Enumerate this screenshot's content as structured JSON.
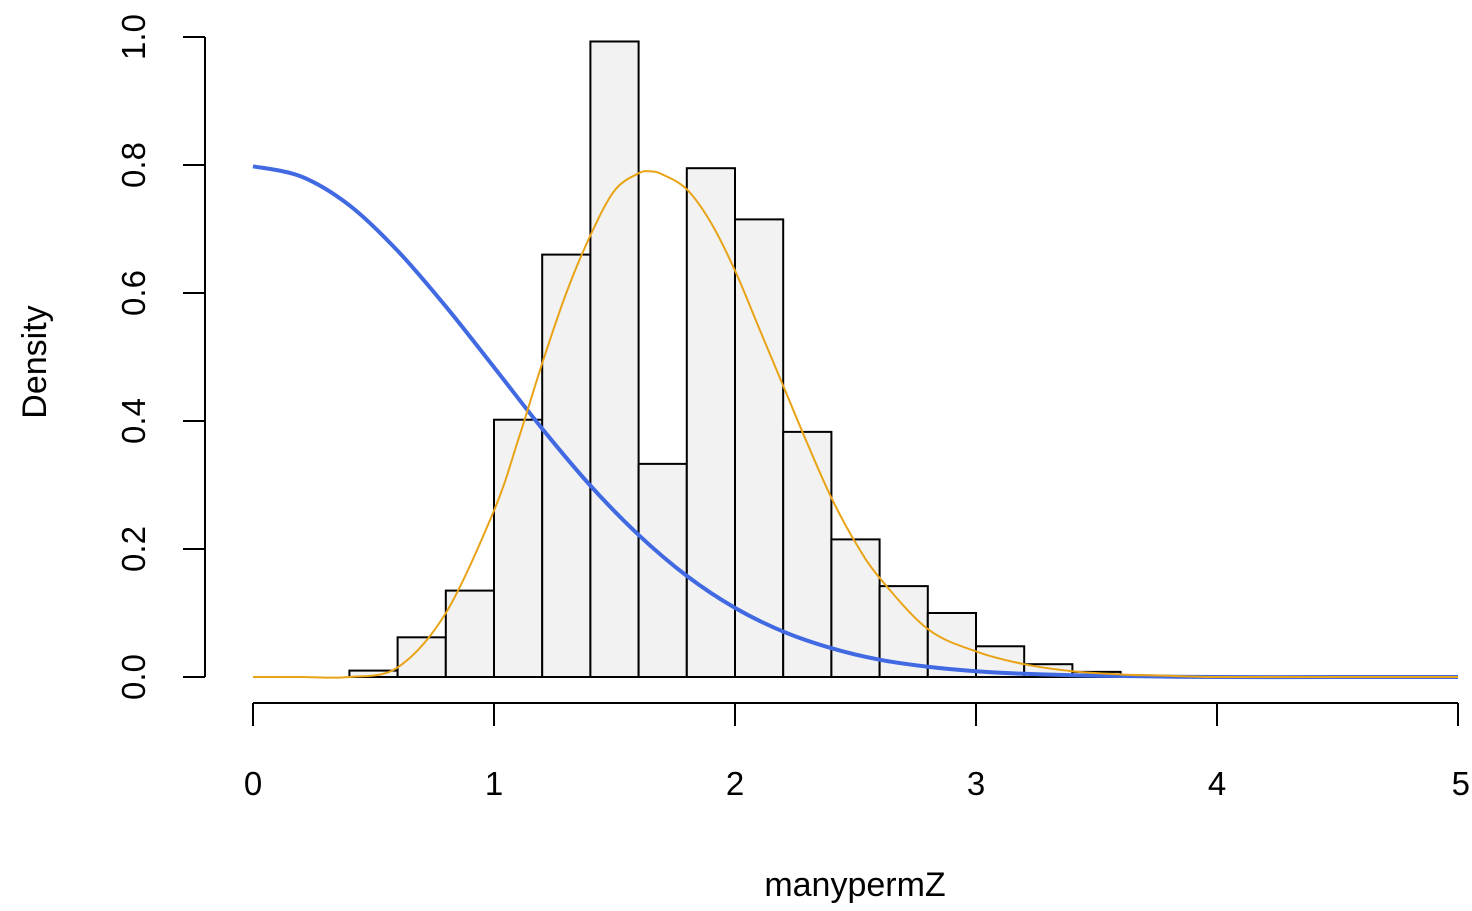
{
  "chart_data": {
    "type": "bar",
    "subtype": "histogram-with-density-curves",
    "title": "",
    "xlabel": "manypermZ",
    "ylabel": "Density",
    "xlim": [
      0,
      5
    ],
    "ylim": [
      0,
      1.0
    ],
    "x_ticks": [
      "0",
      "1",
      "2",
      "3",
      "4",
      "5"
    ],
    "y_ticks": [
      "0.0",
      "0.2",
      "0.4",
      "0.6",
      "0.8",
      "1.0"
    ],
    "bin_width": 0.2,
    "bins": [
      {
        "start": 0.4,
        "end": 0.6,
        "density": 0.01
      },
      {
        "start": 0.6,
        "end": 0.8,
        "density": 0.062
      },
      {
        "start": 0.8,
        "end": 1.0,
        "density": 0.135
      },
      {
        "start": 1.0,
        "end": 1.2,
        "density": 0.402
      },
      {
        "start": 1.2,
        "end": 1.4,
        "density": 0.66
      },
      {
        "start": 1.4,
        "end": 1.6,
        "density": 0.993
      },
      {
        "start": 1.6,
        "end": 1.8,
        "density": 0.333
      },
      {
        "start": 1.8,
        "end": 2.0,
        "density": 0.795
      },
      {
        "start": 2.0,
        "end": 2.2,
        "density": 0.715
      },
      {
        "start": 2.2,
        "end": 2.4,
        "density": 0.383
      },
      {
        "start": 2.4,
        "end": 2.6,
        "density": 0.215
      },
      {
        "start": 2.6,
        "end": 2.8,
        "density": 0.142
      },
      {
        "start": 2.8,
        "end": 3.0,
        "density": 0.1
      },
      {
        "start": 3.0,
        "end": 3.2,
        "density": 0.048
      },
      {
        "start": 3.2,
        "end": 3.4,
        "density": 0.02
      },
      {
        "start": 3.4,
        "end": 3.6,
        "density": 0.008
      }
    ],
    "series": [
      {
        "color": "#4169e1",
        "line_width": 4,
        "x": [
          0,
          0.2,
          0.4,
          0.6,
          0.8,
          1.0,
          1.2,
          1.4,
          1.6,
          1.8,
          2.0,
          2.2,
          2.4,
          2.6,
          2.8,
          3.0,
          3.2,
          3.5,
          4.0,
          4.5,
          5.0
        ],
        "values": [
          0.798,
          0.782,
          0.737,
          0.666,
          0.579,
          0.484,
          0.388,
          0.299,
          0.222,
          0.158,
          0.108,
          0.071,
          0.045,
          0.027,
          0.016,
          0.009,
          0.005,
          0.002,
          0.0,
          0.0,
          0.0
        ]
      },
      {
        "color": "#e8a317",
        "line_width": 2,
        "x": [
          0,
          0.2,
          0.4,
          0.6,
          0.8,
          1.0,
          1.1,
          1.2,
          1.3,
          1.4,
          1.5,
          1.6,
          1.65,
          1.7,
          1.8,
          1.9,
          2.0,
          2.1,
          2.2,
          2.3,
          2.4,
          2.5,
          2.6,
          2.8,
          3.0,
          3.2,
          3.4,
          3.6,
          3.8,
          4.0,
          4.5,
          5.0
        ],
        "values": [
          0.0,
          0.0,
          0.0,
          0.015,
          0.1,
          0.26,
          0.37,
          0.49,
          0.6,
          0.69,
          0.76,
          0.787,
          0.79,
          0.785,
          0.762,
          0.71,
          0.635,
          0.545,
          0.455,
          0.365,
          0.28,
          0.21,
          0.155,
          0.075,
          0.04,
          0.02,
          0.009,
          0.004,
          0.002,
          0.0,
          0.0,
          0.0
        ]
      }
    ],
    "grid": false,
    "legend": "none",
    "colors": {
      "bar_fill": "#f2f2f2",
      "bar_stroke": "#000000"
    }
  }
}
